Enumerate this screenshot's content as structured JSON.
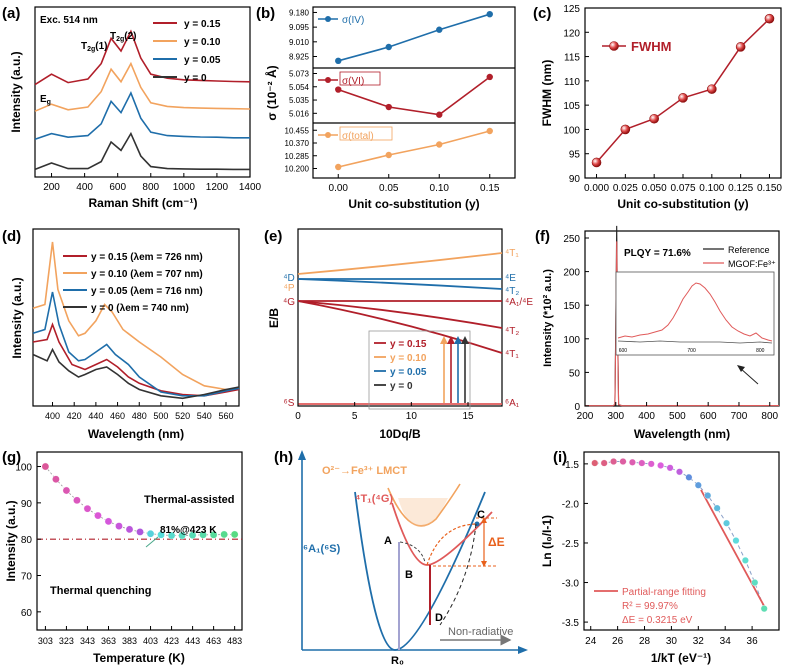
{
  "colors": {
    "red": "#b11f2a",
    "orange": "#f2a35e",
    "blue": "#1f6eaa",
    "black": "#333333",
    "s_line": "#e05a5a",
    "gray": "#666666"
  },
  "chart_data": [
    {
      "id": "a",
      "panel": "(a)",
      "type": "line",
      "xlabel": "Raman Shift (cm⁻¹)",
      "ylabel": "Intensity (a.u.)",
      "xlim": [
        100,
        1400
      ],
      "xticks": [
        200,
        400,
        600,
        800,
        1000,
        1200,
        1400
      ],
      "annotations": [
        "Exc. 514 nm",
        "E_g",
        "T_2g(1)",
        "T_2g(2)"
      ],
      "legend_position": "top-right",
      "series": [
        {
          "name": "y = 0.15",
          "color": "red",
          "offset": 3.0,
          "points": [
            [
              100,
              0.05
            ],
            [
              200,
              0.42
            ],
            [
              300,
              0.12
            ],
            [
              420,
              0.25
            ],
            [
              500,
              0.8
            ],
            [
              560,
              1.7
            ],
            [
              620,
              1.25
            ],
            [
              680,
              1.95
            ],
            [
              740,
              1.0
            ],
            [
              800,
              0.42
            ],
            [
              900,
              0.28
            ],
            [
              1000,
              0.22
            ],
            [
              1100,
              0.2
            ],
            [
              1200,
              0.18
            ],
            [
              1300,
              0.16
            ],
            [
              1400,
              0.15
            ]
          ]
        },
        {
          "name": "y = 0.10",
          "color": "orange",
          "offset": 2.05,
          "points": [
            [
              100,
              0.05
            ],
            [
              200,
              0.3
            ],
            [
              300,
              0.1
            ],
            [
              420,
              0.2
            ],
            [
              500,
              0.75
            ],
            [
              560,
              1.55
            ],
            [
              620,
              1.1
            ],
            [
              680,
              1.75
            ],
            [
              740,
              0.9
            ],
            [
              800,
              0.35
            ],
            [
              900,
              0.22
            ],
            [
              1000,
              0.18
            ],
            [
              1100,
              0.16
            ],
            [
              1200,
              0.15
            ],
            [
              1300,
              0.14
            ],
            [
              1400,
              0.13
            ]
          ]
        },
        {
          "name": "y = 0.05",
          "color": "blue",
          "offset": 1.05,
          "points": [
            [
              100,
              0.05
            ],
            [
              200,
              0.25
            ],
            [
              300,
              0.12
            ],
            [
              420,
              0.18
            ],
            [
              500,
              0.6
            ],
            [
              560,
              1.4
            ],
            [
              620,
              1.0
            ],
            [
              680,
              1.7
            ],
            [
              740,
              0.8
            ],
            [
              800,
              0.3
            ],
            [
              900,
              0.18
            ],
            [
              1000,
              0.15
            ],
            [
              1100,
              0.13
            ],
            [
              1200,
              0.12
            ],
            [
              1300,
              0.1
            ],
            [
              1400,
              0.1
            ]
          ]
        },
        {
          "name": "y = 0",
          "color": "black",
          "offset": 0.0,
          "points": [
            [
              100,
              0.02
            ],
            [
              200,
              0.25
            ],
            [
              300,
              0.05
            ],
            [
              420,
              0.05
            ],
            [
              500,
              0.3
            ],
            [
              560,
              1.0
            ],
            [
              620,
              0.7
            ],
            [
              680,
              1.3
            ],
            [
              740,
              0.5
            ],
            [
              800,
              0.12
            ],
            [
              900,
              0.05
            ],
            [
              1000,
              0.04
            ],
            [
              1100,
              0.03
            ],
            [
              1200,
              0.03
            ],
            [
              1300,
              0.02
            ],
            [
              1400,
              0.02
            ]
          ]
        }
      ]
    },
    {
      "id": "b",
      "panel": "(b)",
      "type": "line",
      "xlabel": "Unit co-substitution (y)",
      "ylabel": "σ (10⁻² Å)",
      "x": [
        0.0,
        0.05,
        0.1,
        0.15
      ],
      "xticks": [
        "0.00",
        "0.05",
        "0.10",
        "0.15"
      ],
      "subplots": [
        {
          "name": "σ(IV)",
          "color": "blue",
          "ylim": [
            8.87,
            9.2
          ],
          "yticks": [
            "8.925",
            "9.010",
            "9.095",
            "9.180"
          ],
          "ytickvals": [
            8.925,
            9.01,
            9.095,
            9.18
          ],
          "values": [
            8.9,
            8.98,
            9.08,
            9.17
          ]
        },
        {
          "name": "σ(VI)",
          "color": "red",
          "ylim": [
            5.005,
            5.078
          ],
          "yticks": [
            "5.016",
            "5.035",
            "5.054",
            "5.073"
          ],
          "ytickvals": [
            5.016,
            5.035,
            5.054,
            5.073
          ],
          "values": [
            5.05,
            5.025,
            5.014,
            5.068
          ]
        },
        {
          "name": "σ(total)",
          "color": "orange",
          "ylim": [
            10.15,
            10.49
          ],
          "yticks": [
            "10.200",
            "10.285",
            "10.370",
            "10.455"
          ],
          "ytickvals": [
            10.2,
            10.285,
            10.37,
            10.455
          ],
          "values": [
            10.21,
            10.29,
            10.36,
            10.45
          ]
        }
      ]
    },
    {
      "id": "c",
      "panel": "(c)",
      "type": "line",
      "xlabel": "Unit co-substitution (y)",
      "ylabel": "FWHM (nm)",
      "legend": "FWHM",
      "legend_position": "top-left",
      "x": [
        0.0,
        0.025,
        0.05,
        0.075,
        0.1,
        0.125,
        0.15
      ],
      "xticks": [
        "0.000",
        "0.025",
        "0.050",
        "0.075",
        "0.100",
        "0.125",
        "0.150"
      ],
      "ylim": [
        90,
        125
      ],
      "yticks": [
        90,
        95,
        100,
        105,
        110,
        115,
        120,
        125
      ],
      "values": [
        93.2,
        100,
        102.2,
        106.5,
        108.3,
        117,
        122.8
      ]
    },
    {
      "id": "d",
      "panel": "(d)",
      "type": "line",
      "xlabel": "Wavelength (nm)",
      "ylabel": "Intensity (a.u.)",
      "xlim": [
        382,
        572
      ],
      "xticks": [
        400,
        420,
        440,
        460,
        480,
        500,
        520,
        540,
        560
      ],
      "legend_position": "top-right",
      "series": [
        {
          "name": "y = 0.15 (λem = 726 nm)",
          "color": "red",
          "points": [
            [
              382,
              0.48
            ],
            [
              395,
              0.5
            ],
            [
              400,
              0.62
            ],
            [
              406,
              0.48
            ],
            [
              418,
              0.3
            ],
            [
              424,
              0.28
            ],
            [
              430,
              0.26
            ],
            [
              440,
              0.3
            ],
            [
              450,
              0.34
            ],
            [
              460,
              0.28
            ],
            [
              470,
              0.2
            ],
            [
              480,
              0.15
            ],
            [
              500,
              0.09
            ],
            [
              520,
              0.06
            ],
            [
              540,
              0.05
            ],
            [
              560,
              0.08
            ],
            [
              572,
              0.1
            ]
          ]
        },
        {
          "name": "y = 0.10 (λem = 707 nm)",
          "color": "orange",
          "points": [
            [
              382,
              0.75
            ],
            [
              393,
              0.78
            ],
            [
              400,
              1.28
            ],
            [
              405,
              0.9
            ],
            [
              415,
              0.65
            ],
            [
              424,
              0.53
            ],
            [
              430,
              0.55
            ],
            [
              440,
              0.65
            ],
            [
              448,
              0.78
            ],
            [
              455,
              0.72
            ],
            [
              465,
              0.58
            ],
            [
              480,
              0.48
            ],
            [
              500,
              0.36
            ],
            [
              520,
              0.22
            ],
            [
              540,
              0.13
            ],
            [
              560,
              0.1
            ],
            [
              572,
              0.11
            ]
          ]
        },
        {
          "name": "y = 0.05 (λem = 716 nm)",
          "color": "blue",
          "points": [
            [
              382,
              0.55
            ],
            [
              393,
              0.58
            ],
            [
              400,
              0.88
            ],
            [
              406,
              0.62
            ],
            [
              415,
              0.4
            ],
            [
              424,
              0.33
            ],
            [
              430,
              0.34
            ],
            [
              440,
              0.4
            ],
            [
              450,
              0.46
            ],
            [
              458,
              0.38
            ],
            [
              470,
              0.3
            ],
            [
              480,
              0.2
            ],
            [
              500,
              0.08
            ],
            [
              520,
              0.05
            ],
            [
              540,
              0.05
            ],
            [
              560,
              0.09
            ],
            [
              572,
              0.11
            ]
          ]
        },
        {
          "name": "y = 0 (λem = 740 nm)",
          "color": "black",
          "points": [
            [
              382,
              0.38
            ],
            [
              395,
              0.33
            ],
            [
              400,
              0.42
            ],
            [
              406,
              0.32
            ],
            [
              415,
              0.25
            ],
            [
              424,
              0.2
            ],
            [
              430,
              0.22
            ],
            [
              440,
              0.26
            ],
            [
              450,
              0.28
            ],
            [
              460,
              0.22
            ],
            [
              470,
              0.15
            ],
            [
              480,
              0.1
            ],
            [
              500,
              0.05
            ],
            [
              520,
              0.03
            ],
            [
              540,
              0.06
            ],
            [
              560,
              0.1
            ],
            [
              572,
              0.12
            ]
          ]
        }
      ]
    },
    {
      "id": "e",
      "panel": "(e)",
      "type": "line",
      "xlabel": "10Dq/B",
      "ylabel": "E/B",
      "xlim": [
        0,
        18
      ],
      "xticks": [
        0,
        5,
        10,
        15
      ],
      "left_labels": [
        {
          "text": "⁴D",
          "color": "blue"
        },
        {
          "text": "⁴P",
          "color": "orange"
        },
        {
          "text": "⁴G",
          "color": "red"
        },
        {
          "text": "⁶S",
          "color": "red"
        }
      ],
      "right_labels": [
        {
          "text": "⁴T₁",
          "color": "orange"
        },
        {
          "text": "⁴E",
          "color": "blue"
        },
        {
          "text": "⁴T₂",
          "color": "blue"
        },
        {
          "text": "⁴A₁/⁴E",
          "color": "red"
        },
        {
          "text": "⁴T₂",
          "color": "red"
        },
        {
          "text": "⁴T₁",
          "color": "red"
        },
        {
          "text": "⁶A₁",
          "color": "red"
        }
      ],
      "legend": [
        {
          "name": "y = 0.15",
          "color": "red"
        },
        {
          "name": "y = 0.10",
          "color": "orange"
        },
        {
          "name": "y = 0.05",
          "color": "blue"
        },
        {
          "name": "y = 0",
          "color": "black"
        }
      ]
    },
    {
      "id": "f",
      "panel": "(f)",
      "type": "line",
      "xlabel": "Wavelength (nm)",
      "ylabel": "Intensity (*10² a.u.)",
      "xlim": [
        200,
        830
      ],
      "xticks": [
        200,
        300,
        400,
        500,
        600,
        700,
        800
      ],
      "ylim": [
        0,
        250
      ],
      "yticks": [
        0,
        50,
        100,
        150,
        200,
        250
      ],
      "annotation": "PLQY = 71.6%",
      "legend": [
        "Reference",
        "MGOF:Fe³⁺"
      ],
      "peak": {
        "x": 303,
        "reference": 268,
        "sample": 245
      },
      "inset_xticks": [
        600,
        700,
        800
      ]
    },
    {
      "id": "g",
      "panel": "(g)",
      "type": "scatter",
      "xlabel": "Temperature (K)",
      "ylabel": "Intensity (a.u.)",
      "xticks": [
        303,
        323,
        343,
        363,
        383,
        403,
        423,
        443,
        463,
        483
      ],
      "ylim": [
        55,
        104
      ],
      "yticks": [
        60,
        70,
        80,
        90,
        100
      ],
      "x": [
        303,
        313,
        323,
        333,
        343,
        353,
        363,
        373,
        383,
        393,
        403,
        413,
        423,
        433,
        443,
        453,
        463,
        473,
        483
      ],
      "values": [
        100,
        96.5,
        93.4,
        90.7,
        88.4,
        86.5,
        84.9,
        83.6,
        82.7,
        82,
        81.5,
        81.2,
        81,
        81,
        81.1,
        81.2,
        81.2,
        81.3,
        81.3
      ],
      "reference_line": 80,
      "annotations": [
        "Thermal-assisted",
        "81%@423 K",
        "Thermal quenching"
      ]
    },
    {
      "id": "h",
      "panel": "(h)",
      "type": "diagram",
      "labels": [
        "O²⁻→Fe³⁺ LMCT",
        "⁴T₁(⁴G)",
        "⁶A₁(⁶S)",
        "A",
        "B",
        "C",
        "D",
        "ΔE",
        "Non-radiative",
        "R₀"
      ]
    },
    {
      "id": "i",
      "panel": "(i)",
      "type": "scatter",
      "xlabel": "1/kT (eV⁻¹)",
      "ylabel": "Ln (I₀/I-1)",
      "xlim": [
        23.5,
        38
      ],
      "xticks": [
        24,
        26,
        28,
        30,
        32,
        34,
        36
      ],
      "ylim": [
        -3.6,
        -1.35
      ],
      "yticks": [
        -1.5,
        -2.0,
        -2.5,
        -3.0,
        -3.5
      ],
      "x": [
        24.3,
        25.0,
        25.7,
        26.4,
        27.1,
        27.8,
        28.5,
        29.2,
        29.9,
        30.6,
        31.3,
        32.0,
        32.7,
        33.4,
        34.1,
        34.8,
        35.5,
        36.2,
        36.9
      ],
      "values": [
        -1.49,
        -1.49,
        -1.47,
        -1.47,
        -1.48,
        -1.49,
        -1.5,
        -1.52,
        -1.55,
        -1.6,
        -1.67,
        -1.77,
        -1.9,
        -2.06,
        -2.25,
        -2.47,
        -2.72,
        -3.0,
        -3.33
      ],
      "fit": {
        "x": [
          32.2,
          37.0
        ],
        "y": [
          -1.83,
          -3.33
        ],
        "name": "Partial-range fitting"
      },
      "fit_text": [
        "R² = 99.97%",
        "ΔE = 0.3215 eV"
      ]
    }
  ]
}
